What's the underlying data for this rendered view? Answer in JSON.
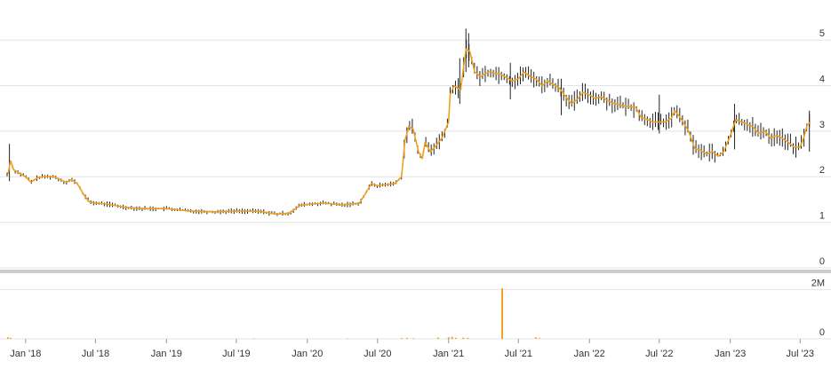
{
  "chart_data": {
    "type": "candlestick",
    "colors": {
      "line": "#f0a020",
      "candle": "#222222",
      "volume": "#f0a020",
      "grid": "#e4e4e4",
      "divider": "#cccccc"
    },
    "price": {
      "y_ticks": [
        "0",
        "1",
        "2",
        "3",
        "4",
        "5"
      ],
      "y_tick_values": [
        0,
        1,
        2,
        3,
        4,
        5
      ],
      "ylim": [
        0,
        5.8
      ],
      "grid": true,
      "ma_line": [
        [
          "2017-11-16",
          2.05
        ],
        [
          "2017-11-23",
          2.35
        ],
        [
          "2017-12-01",
          2.15
        ],
        [
          "2017-12-15",
          2.08
        ],
        [
          "2018-01-01",
          2.0
        ],
        [
          "2018-01-15",
          1.88
        ],
        [
          "2018-02-01",
          1.98
        ],
        [
          "2018-02-15",
          2.0
        ],
        [
          "2018-03-15",
          2.0
        ],
        [
          "2018-04-15",
          1.88
        ],
        [
          "2018-05-01",
          1.93
        ],
        [
          "2018-05-15",
          1.85
        ],
        [
          "2018-06-01",
          1.6
        ],
        [
          "2018-06-15",
          1.45
        ],
        [
          "2018-07-01",
          1.42
        ],
        [
          "2018-08-01",
          1.4
        ],
        [
          "2018-09-15",
          1.33
        ],
        [
          "2018-11-01",
          1.3
        ],
        [
          "2019-01-01",
          1.3
        ],
        [
          "2019-03-01",
          1.25
        ],
        [
          "2019-05-01",
          1.23
        ],
        [
          "2019-07-01",
          1.25
        ],
        [
          "2019-09-01",
          1.24
        ],
        [
          "2019-10-15",
          1.18
        ],
        [
          "2019-11-15",
          1.2
        ],
        [
          "2019-12-15",
          1.38
        ],
        [
          "2020-02-15",
          1.42
        ],
        [
          "2020-04-01",
          1.38
        ],
        [
          "2020-05-15",
          1.42
        ],
        [
          "2020-06-01",
          1.65
        ],
        [
          "2020-06-15",
          1.85
        ],
        [
          "2020-07-01",
          1.8
        ],
        [
          "2020-07-15",
          1.82
        ],
        [
          "2020-08-15",
          1.85
        ],
        [
          "2020-09-01",
          2.0
        ],
        [
          "2020-09-10",
          2.8
        ],
        [
          "2020-09-20",
          3.1
        ],
        [
          "2020-10-01",
          3.05
        ],
        [
          "2020-10-15",
          2.55
        ],
        [
          "2020-10-25",
          2.4
        ],
        [
          "2020-11-01",
          2.75
        ],
        [
          "2020-11-15",
          2.55
        ],
        [
          "2020-12-01",
          2.7
        ],
        [
          "2020-12-15",
          2.85
        ],
        [
          "2021-01-01",
          3.2
        ],
        [
          "2021-01-05",
          3.8
        ],
        [
          "2021-01-15",
          4.0
        ],
        [
          "2021-02-01",
          3.9
        ],
        [
          "2021-02-15",
          4.8
        ],
        [
          "2021-02-25",
          4.75
        ],
        [
          "2021-03-10",
          4.3
        ],
        [
          "2021-03-25",
          4.2
        ],
        [
          "2021-04-15",
          4.3
        ],
        [
          "2021-05-15",
          4.25
        ],
        [
          "2021-06-15",
          4.1
        ],
        [
          "2021-07-01",
          4.15
        ],
        [
          "2021-07-15",
          4.3
        ],
        [
          "2021-08-01",
          4.2
        ],
        [
          "2021-08-15",
          4.15
        ],
        [
          "2021-09-01",
          4.0
        ],
        [
          "2021-09-15",
          4.1
        ],
        [
          "2021-10-15",
          3.95
        ],
        [
          "2021-11-01",
          3.75
        ],
        [
          "2021-11-15",
          3.6
        ],
        [
          "2021-12-01",
          3.7
        ],
        [
          "2021-12-15",
          3.85
        ],
        [
          "2022-01-01",
          3.8
        ],
        [
          "2022-01-15",
          3.72
        ],
        [
          "2022-02-01",
          3.75
        ],
        [
          "2022-03-01",
          3.62
        ],
        [
          "2022-04-01",
          3.55
        ],
        [
          "2022-05-01",
          3.52
        ],
        [
          "2022-05-15",
          3.3
        ],
        [
          "2022-06-01",
          3.25
        ],
        [
          "2022-06-15",
          3.2
        ],
        [
          "2022-07-15",
          3.2
        ],
        [
          "2022-08-01",
          3.28
        ],
        [
          "2022-08-10",
          3.45
        ],
        [
          "2022-08-20",
          3.35
        ],
        [
          "2022-09-01",
          3.2
        ],
        [
          "2022-09-15",
          3.0
        ],
        [
          "2022-10-01",
          2.62
        ],
        [
          "2022-10-15",
          2.58
        ],
        [
          "2022-11-01",
          2.5
        ],
        [
          "2022-11-15",
          2.55
        ],
        [
          "2022-12-01",
          2.45
        ],
        [
          "2022-12-15",
          2.55
        ],
        [
          "2023-01-01",
          2.9
        ],
        [
          "2023-01-15",
          3.25
        ],
        [
          "2023-02-01",
          3.2
        ],
        [
          "2023-02-15",
          3.15
        ],
        [
          "2023-03-01",
          3.1
        ],
        [
          "2023-03-15",
          2.95
        ],
        [
          "2023-04-01",
          3.0
        ],
        [
          "2023-04-15",
          2.85
        ],
        [
          "2023-05-01",
          2.9
        ],
        [
          "2023-05-15",
          2.85
        ],
        [
          "2023-06-01",
          2.75
        ],
        [
          "2023-06-15",
          2.65
        ],
        [
          "2023-07-01",
          2.65
        ],
        [
          "2023-07-10",
          2.85
        ],
        [
          "2023-07-20",
          3.15
        ],
        [
          "2023-07-28",
          3.2
        ]
      ],
      "highlight_candles": [
        {
          "date": "2017-11-20",
          "high": 2.72,
          "low": 1.9
        },
        {
          "date": "2021-01-30",
          "high": 4.6,
          "low": 3.6
        },
        {
          "date": "2021-02-15",
          "high": 5.25,
          "low": 4.3
        },
        {
          "date": "2021-02-22",
          "high": 5.15,
          "low": 4.4
        },
        {
          "date": "2021-06-10",
          "high": 4.5,
          "low": 3.7
        },
        {
          "date": "2021-10-20",
          "high": 4.15,
          "low": 3.35
        },
        {
          "date": "2022-07-01",
          "high": 3.8,
          "low": 2.95
        },
        {
          "date": "2023-01-12",
          "high": 3.6,
          "low": 2.6
        },
        {
          "date": "2023-07-25",
          "high": 3.45,
          "low": 2.55
        }
      ]
    },
    "volume": {
      "y_ticks": [
        "0",
        "2M"
      ],
      "y_tick_values": [
        0,
        2000000
      ],
      "ylim": [
        0,
        2300000
      ],
      "bars": [
        [
          "2017-11-16",
          60000
        ],
        [
          "2017-11-23",
          40000
        ],
        [
          "2019-08-15",
          15000
        ],
        [
          "2020-04-15",
          15000
        ],
        [
          "2020-07-01",
          12000
        ],
        [
          "2020-09-01",
          30000
        ],
        [
          "2020-09-15",
          40000
        ],
        [
          "2020-10-01",
          25000
        ],
        [
          "2020-12-05",
          50000
        ],
        [
          "2021-01-01",
          60000
        ],
        [
          "2021-01-10",
          80000
        ],
        [
          "2021-01-20",
          40000
        ],
        [
          "2021-02-08",
          50000
        ],
        [
          "2021-02-20",
          40000
        ],
        [
          "2021-05-20",
          2050000
        ],
        [
          "2021-08-15",
          60000
        ],
        [
          "2021-08-25",
          30000
        ]
      ]
    },
    "x_axis": {
      "tick_labels": [
        "Jan '18",
        "Jul '18",
        "Jan '19",
        "Jul '19",
        "Jan '20",
        "Jul '20",
        "Jan '21",
        "Jul '21",
        "Jan '22",
        "Jul '22",
        "Jan '23",
        "Jul '23"
      ],
      "tick_dates": [
        "2018-01-01",
        "2018-07-01",
        "2019-01-01",
        "2019-07-01",
        "2020-01-01",
        "2020-07-01",
        "2021-01-01",
        "2021-07-01",
        "2022-01-01",
        "2022-07-01",
        "2023-01-01",
        "2023-07-01"
      ],
      "range": [
        "2017-11-14",
        "2023-07-28"
      ]
    },
    "legend": false,
    "title": ""
  }
}
